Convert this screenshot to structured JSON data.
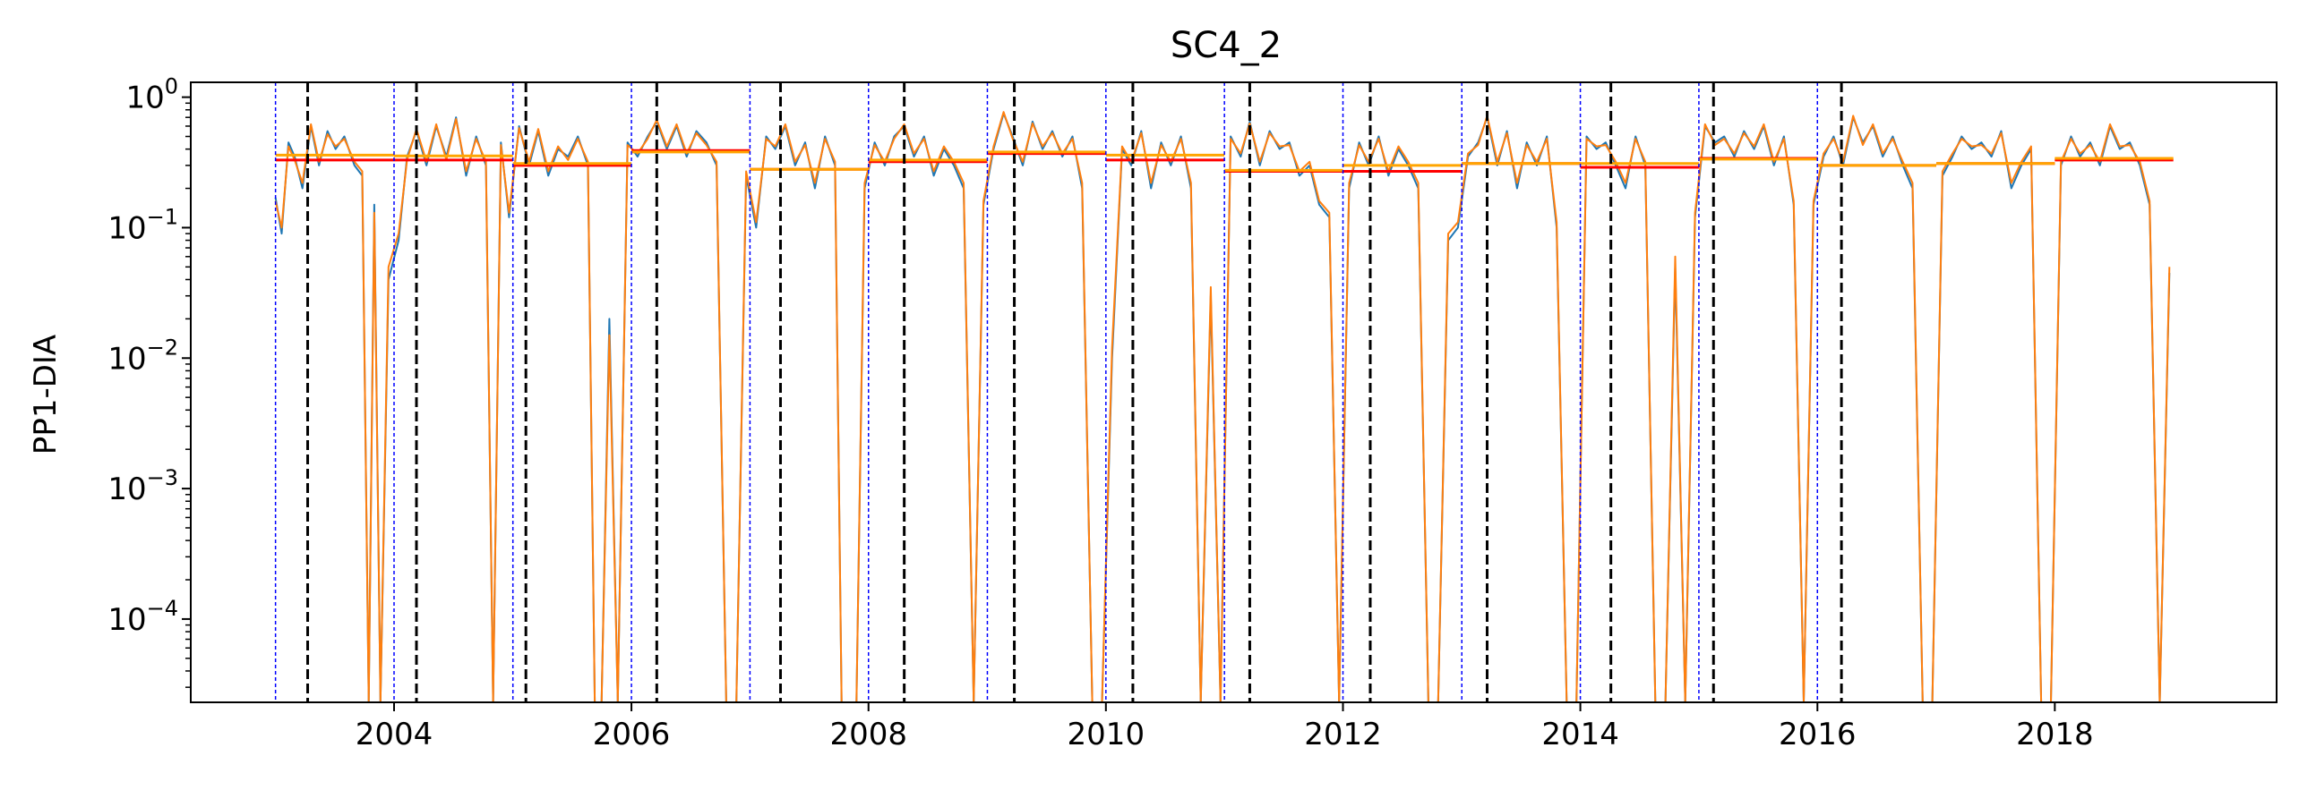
{
  "chart_data": {
    "type": "line",
    "title": "SC4_2",
    "xlabel": "",
    "ylabel": "PP1-DIA",
    "xlim": [
      "2002-04-15",
      "2019-11-15"
    ],
    "ylog": true,
    "ylim": [
      2.3e-05,
      1.3
    ],
    "x_ticks": [
      {
        "date": "2004-01-01",
        "label": "2004"
      },
      {
        "date": "2006-01-01",
        "label": "2006"
      },
      {
        "date": "2008-01-01",
        "label": "2008"
      },
      {
        "date": "2010-01-01",
        "label": "2010"
      },
      {
        "date": "2012-01-01",
        "label": "2012"
      },
      {
        "date": "2014-01-01",
        "label": "2014"
      },
      {
        "date": "2016-01-01",
        "label": "2016"
      },
      {
        "date": "2018-01-01",
        "label": "2018"
      }
    ],
    "y_ticks": [
      {
        "value": 1,
        "base": "10",
        "exp": "0"
      },
      {
        "value": 0.1,
        "base": "10",
        "exp": "−1"
      },
      {
        "value": 0.01,
        "base": "10",
        "exp": "−2"
      },
      {
        "value": 0.001,
        "base": "10",
        "exp": "−3"
      },
      {
        "value": 0.0001,
        "base": "10",
        "exp": "−4"
      }
    ],
    "grid": false,
    "colors": {
      "series_blue": "#1f77b4",
      "series_orange": "#ff7f0e",
      "year_mean_red": "#ff0000",
      "year_mean_orange": "#ffa500",
      "year_start_line": "#0000ff",
      "event_line": "#000000"
    },
    "year_start_lines": [
      "2003-01-01",
      "2004-01-01",
      "2005-01-01",
      "2006-01-01",
      "2007-01-01",
      "2008-01-01",
      "2009-01-01",
      "2010-01-01",
      "2011-01-01",
      "2012-01-01",
      "2013-01-01",
      "2014-01-01",
      "2015-01-01",
      "2016-01-01"
    ],
    "event_lines": [
      "2003-04-10",
      "2004-03-10",
      "2005-02-10",
      "2006-03-20",
      "2007-04-05",
      "2008-04-20",
      "2009-03-25",
      "2010-03-25",
      "2011-03-20",
      "2012-03-25",
      "2013-03-20",
      "2014-04-05",
      "2015-02-15",
      "2016-03-15"
    ],
    "yearly_means": [
      {
        "year": 2003,
        "red": 0.33,
        "orange": 0.36
      },
      {
        "year": 2004,
        "red": 0.33,
        "orange": 0.355
      },
      {
        "year": 2005,
        "red": 0.3,
        "orange": 0.31
      },
      {
        "year": 2006,
        "red": 0.39,
        "orange": 0.38
      },
      {
        "year": 2007,
        "red": 0.28,
        "orange": 0.28
      },
      {
        "year": 2008,
        "red": 0.32,
        "orange": 0.33
      },
      {
        "year": 2009,
        "red": 0.37,
        "orange": 0.38
      },
      {
        "year": 2010,
        "red": 0.33,
        "orange": 0.36
      },
      {
        "year": 2011,
        "red": 0.27,
        "orange": 0.275
      },
      {
        "year": 2012,
        "red": 0.27,
        "orange": 0.3
      },
      {
        "year": 2013,
        "red": 0.31,
        "orange": 0.31
      },
      {
        "year": 2014,
        "red": 0.29,
        "orange": 0.31
      },
      {
        "year": 2015,
        "red": 0.34,
        "orange": 0.335
      },
      {
        "year": 2016,
        "red": 0.3,
        "orange": 0.3
      },
      {
        "year": 2017,
        "red": 0.31,
        "orange": 0.31
      },
      {
        "year": 2018,
        "red": 0.33,
        "orange": 0.34
      }
    ],
    "series": [
      {
        "color_key": "series_blue",
        "x": [
          "2003-01-01",
          "2003-01-20",
          "2003-02-10",
          "2003-03-01",
          "2003-03-25",
          "2003-04-20",
          "2003-05-15",
          "2003-06-10",
          "2003-07-05",
          "2003-08-01",
          "2003-09-01",
          "2003-09-25",
          "2003-10-15",
          "2003-11-01",
          "2003-11-20",
          "2003-12-15",
          "2004-01-15",
          "2004-02-10",
          "2004-03-10",
          "2004-04-10",
          "2004-05-10",
          "2004-06-10",
          "2004-07-10",
          "2004-08-10",
          "2004-09-10",
          "2004-10-10",
          "2004-11-01",
          "2004-11-25",
          "2004-12-20",
          "2005-01-20",
          "2005-02-20",
          "2005-03-20",
          "2005-04-20",
          "2005-05-20",
          "2005-06-20",
          "2005-07-20",
          "2005-08-20",
          "2005-09-10",
          "2005-10-01",
          "2005-10-25",
          "2005-11-20",
          "2005-12-20",
          "2006-01-20",
          "2006-02-20",
          "2006-03-20",
          "2006-04-20",
          "2006-05-20",
          "2006-06-20",
          "2006-07-20",
          "2006-08-20",
          "2006-09-20",
          "2006-10-20",
          "2006-11-20",
          "2006-12-20",
          "2007-01-20",
          "2007-02-20",
          "2007-03-20",
          "2007-04-20",
          "2007-05-20",
          "2007-06-20",
          "2007-07-20",
          "2007-08-20",
          "2007-09-20",
          "2007-10-10",
          "2007-11-01",
          "2007-11-25",
          "2007-12-20",
          "2008-01-20",
          "2008-02-20",
          "2008-03-20",
          "2008-04-20",
          "2008-05-20",
          "2008-06-20",
          "2008-07-20",
          "2008-08-20",
          "2008-09-20",
          "2008-10-20",
          "2008-11-20",
          "2008-12-20",
          "2009-01-20",
          "2009-02-20",
          "2009-03-20",
          "2009-04-20",
          "2009-05-20",
          "2009-06-20",
          "2009-07-20",
          "2009-08-20",
          "2009-09-20",
          "2009-10-20",
          "2009-11-20",
          "2009-12-20",
          "2010-01-20",
          "2010-02-20",
          "2010-03-20",
          "2010-04-20",
          "2010-05-20",
          "2010-06-20",
          "2010-07-20",
          "2010-08-20",
          "2010-09-20",
          "2010-10-20",
          "2010-11-20",
          "2010-12-20",
          "2011-01-20",
          "2011-02-20",
          "2011-03-20",
          "2011-04-20",
          "2011-05-20",
          "2011-06-20",
          "2011-07-20",
          "2011-08-20",
          "2011-09-20",
          "2011-10-20",
          "2011-11-20",
          "2011-12-20",
          "2012-01-20",
          "2012-02-20",
          "2012-03-20",
          "2012-04-20",
          "2012-05-20",
          "2012-06-20",
          "2012-07-20",
          "2012-08-20",
          "2012-09-20",
          "2012-10-20",
          "2012-11-20",
          "2012-12-20",
          "2013-01-20",
          "2013-02-20",
          "2013-03-20",
          "2013-04-20",
          "2013-05-20",
          "2013-06-20",
          "2013-07-20",
          "2013-08-20",
          "2013-09-20",
          "2013-10-20",
          "2013-11-20",
          "2013-12-20",
          "2014-01-20",
          "2014-02-20",
          "2014-03-20",
          "2014-04-20",
          "2014-05-20",
          "2014-06-20",
          "2014-07-20",
          "2014-08-20",
          "2014-09-20",
          "2014-10-20",
          "2014-11-20",
          "2014-12-20",
          "2015-01-20",
          "2015-02-20",
          "2015-03-20",
          "2015-04-20",
          "2015-05-20",
          "2015-06-20",
          "2015-07-20",
          "2015-08-20",
          "2015-09-20",
          "2015-10-20",
          "2015-11-20",
          "2015-12-20",
          "2016-01-20",
          "2016-02-20",
          "2016-03-20",
          "2016-04-20",
          "2016-05-20",
          "2016-06-20",
          "2016-07-20",
          "2016-08-20",
          "2016-09-20",
          "2016-10-20",
          "2016-11-20",
          "2016-12-20",
          "2017-01-20",
          "2017-02-20",
          "2017-03-20",
          "2017-04-20",
          "2017-05-20",
          "2017-06-20",
          "2017-07-20",
          "2017-08-20",
          "2017-09-20",
          "2017-10-20",
          "2017-11-20",
          "2017-12-20",
          "2018-01-20",
          "2018-02-20",
          "2018-03-20",
          "2018-04-20",
          "2018-05-20",
          "2018-06-20",
          "2018-07-20",
          "2018-08-20",
          "2018-09-20",
          "2018-10-20",
          "2018-11-20",
          "2018-12-20"
        ],
        "y": [
          0.17,
          0.09,
          0.45,
          0.35,
          0.2,
          0.6,
          0.3,
          0.55,
          0.4,
          0.5,
          0.3,
          0.25,
          2e-05,
          0.15,
          2e-05,
          0.04,
          0.08,
          0.35,
          0.55,
          0.3,
          0.6,
          0.35,
          0.7,
          0.25,
          0.5,
          0.3,
          2e-05,
          0.45,
          0.12,
          0.6,
          0.3,
          0.55,
          0.25,
          0.4,
          0.35,
          0.5,
          0.3,
          2e-05,
          2e-05,
          0.02,
          2e-05,
          0.45,
          0.35,
          0.5,
          0.65,
          0.4,
          0.6,
          0.35,
          0.55,
          0.45,
          0.3,
          2e-05,
          2e-05,
          0.25,
          0.1,
          0.5,
          0.4,
          0.6,
          0.3,
          0.45,
          0.2,
          0.5,
          0.3,
          2e-05,
          2e-05,
          2e-05,
          0.2,
          0.45,
          0.3,
          0.5,
          0.6,
          0.35,
          0.5,
          0.25,
          0.4,
          0.3,
          0.2,
          2e-05,
          0.15,
          0.4,
          0.75,
          0.5,
          0.3,
          0.65,
          0.4,
          0.55,
          0.35,
          0.5,
          0.2,
          2e-05,
          2e-05,
          0.01,
          0.4,
          0.3,
          0.55,
          0.2,
          0.45,
          0.3,
          0.5,
          0.2,
          2e-05,
          0.03,
          2e-05,
          0.5,
          0.35,
          0.65,
          0.3,
          0.55,
          0.4,
          0.45,
          0.25,
          0.3,
          0.15,
          0.12,
          2e-05,
          0.2,
          0.45,
          0.3,
          0.5,
          0.25,
          0.4,
          0.3,
          0.2,
          2e-05,
          2e-05,
          0.08,
          0.1,
          0.35,
          0.45,
          0.7,
          0.3,
          0.55,
          0.2,
          0.45,
          0.3,
          0.5,
          0.1,
          2e-05,
          2e-05,
          0.5,
          0.4,
          0.45,
          0.3,
          0.2,
          0.5,
          0.3,
          2e-05,
          2e-05,
          0.05,
          2e-05,
          0.12,
          0.6,
          0.45,
          0.5,
          0.35,
          0.55,
          0.4,
          0.6,
          0.3,
          0.5,
          0.15,
          2e-05,
          0.15,
          0.35,
          0.5,
          0.3,
          0.7,
          0.45,
          0.6,
          0.35,
          0.5,
          0.3,
          0.2,
          2e-05,
          2e-05,
          0.25,
          0.35,
          0.5,
          0.4,
          0.45,
          0.35,
          0.55,
          0.2,
          0.3,
          0.4,
          2e-05,
          2e-05,
          0.3,
          0.5,
          0.35,
          0.45,
          0.3,
          0.6,
          0.4,
          0.45,
          0.3,
          0.15,
          2e-05,
          0.045
        ]
      },
      {
        "color_key": "series_orange",
        "x": [
          "2003-01-01",
          "2003-01-20",
          "2003-02-10",
          "2003-03-01",
          "2003-03-25",
          "2003-04-20",
          "2003-05-15",
          "2003-06-10",
          "2003-07-05",
          "2003-08-01",
          "2003-09-01",
          "2003-09-25",
          "2003-10-15",
          "2003-11-01",
          "2003-11-20",
          "2003-12-15",
          "2004-01-15",
          "2004-02-10",
          "2004-03-10",
          "2004-04-10",
          "2004-05-10",
          "2004-06-10",
          "2004-07-10",
          "2004-08-10",
          "2004-09-10",
          "2004-10-10",
          "2004-11-01",
          "2004-11-25",
          "2004-12-20",
          "2005-01-20",
          "2005-02-20",
          "2005-03-20",
          "2005-04-20",
          "2005-05-20",
          "2005-06-20",
          "2005-07-20",
          "2005-08-20",
          "2005-09-10",
          "2005-10-01",
          "2005-10-25",
          "2005-11-20",
          "2005-12-20",
          "2006-01-20",
          "2006-02-20",
          "2006-03-20",
          "2006-04-20",
          "2006-05-20",
          "2006-06-20",
          "2006-07-20",
          "2006-08-20",
          "2006-09-20",
          "2006-10-20",
          "2006-11-20",
          "2006-12-20",
          "2007-01-20",
          "2007-02-20",
          "2007-03-20",
          "2007-04-20",
          "2007-05-20",
          "2007-06-20",
          "2007-07-20",
          "2007-08-20",
          "2007-09-20",
          "2007-10-10",
          "2007-11-01",
          "2007-11-25",
          "2007-12-20",
          "2008-01-20",
          "2008-02-20",
          "2008-03-20",
          "2008-04-20",
          "2008-05-20",
          "2008-06-20",
          "2008-07-20",
          "2008-08-20",
          "2008-09-20",
          "2008-10-20",
          "2008-11-20",
          "2008-12-20",
          "2009-01-20",
          "2009-02-20",
          "2009-03-20",
          "2009-04-20",
          "2009-05-20",
          "2009-06-20",
          "2009-07-20",
          "2009-08-20",
          "2009-09-20",
          "2009-10-20",
          "2009-11-20",
          "2009-12-20",
          "2010-01-20",
          "2010-02-20",
          "2010-03-20",
          "2010-04-20",
          "2010-05-20",
          "2010-06-20",
          "2010-07-20",
          "2010-08-20",
          "2010-09-20",
          "2010-10-20",
          "2010-11-20",
          "2010-12-20",
          "2011-01-20",
          "2011-02-20",
          "2011-03-20",
          "2011-04-20",
          "2011-05-20",
          "2011-06-20",
          "2011-07-20",
          "2011-08-20",
          "2011-09-20",
          "2011-10-20",
          "2011-11-20",
          "2011-12-20",
          "2012-01-20",
          "2012-02-20",
          "2012-03-20",
          "2012-04-20",
          "2012-05-20",
          "2012-06-20",
          "2012-07-20",
          "2012-08-20",
          "2012-09-20",
          "2012-10-20",
          "2012-11-20",
          "2012-12-20",
          "2013-01-20",
          "2013-02-20",
          "2013-03-20",
          "2013-04-20",
          "2013-05-20",
          "2013-06-20",
          "2013-07-20",
          "2013-08-20",
          "2013-09-20",
          "2013-10-20",
          "2013-11-20",
          "2013-12-20",
          "2014-01-20",
          "2014-02-20",
          "2014-03-20",
          "2014-04-20",
          "2014-05-20",
          "2014-06-20",
          "2014-07-20",
          "2014-08-20",
          "2014-09-20",
          "2014-10-20",
          "2014-11-20",
          "2014-12-20",
          "2015-01-20",
          "2015-02-20",
          "2015-03-20",
          "2015-04-20",
          "2015-05-20",
          "2015-06-20",
          "2015-07-20",
          "2015-08-20",
          "2015-09-20",
          "2015-10-20",
          "2015-11-20",
          "2015-12-20",
          "2016-01-20",
          "2016-02-20",
          "2016-03-20",
          "2016-04-20",
          "2016-05-20",
          "2016-06-20",
          "2016-07-20",
          "2016-08-20",
          "2016-09-20",
          "2016-10-20",
          "2016-11-20",
          "2016-12-20",
          "2017-01-20",
          "2017-02-20",
          "2017-03-20",
          "2017-04-20",
          "2017-05-20",
          "2017-06-20",
          "2017-07-20",
          "2017-08-20",
          "2017-09-20",
          "2017-10-20",
          "2017-11-20",
          "2017-12-20",
          "2018-01-20",
          "2018-02-20",
          "2018-03-20",
          "2018-04-20",
          "2018-05-20",
          "2018-06-20",
          "2018-07-20",
          "2018-08-20",
          "2018-09-20",
          "2018-10-20",
          "2018-11-20",
          "2018-12-20"
        ],
        "y": [
          0.16,
          0.1,
          0.42,
          0.33,
          0.22,
          0.62,
          0.32,
          0.52,
          0.42,
          0.48,
          0.32,
          0.27,
          2e-05,
          0.13,
          2e-05,
          0.05,
          0.09,
          0.33,
          0.57,
          0.32,
          0.62,
          0.33,
          0.68,
          0.27,
          0.48,
          0.32,
          2e-05,
          0.43,
          0.13,
          0.58,
          0.32,
          0.57,
          0.27,
          0.42,
          0.33,
          0.48,
          0.32,
          2e-05,
          2e-05,
          0.015,
          2e-05,
          0.43,
          0.37,
          0.48,
          0.67,
          0.42,
          0.62,
          0.37,
          0.53,
          0.43,
          0.32,
          2e-05,
          2e-05,
          0.27,
          0.11,
          0.48,
          0.42,
          0.62,
          0.32,
          0.43,
          0.22,
          0.48,
          0.32,
          2e-05,
          2e-05,
          2e-05,
          0.22,
          0.43,
          0.32,
          0.48,
          0.62,
          0.37,
          0.48,
          0.27,
          0.42,
          0.32,
          0.22,
          2e-05,
          0.16,
          0.42,
          0.77,
          0.48,
          0.32,
          0.63,
          0.42,
          0.53,
          0.37,
          0.48,
          0.22,
          2e-05,
          2e-05,
          0.012,
          0.42,
          0.32,
          0.53,
          0.22,
          0.43,
          0.32,
          0.48,
          0.22,
          2e-05,
          0.035,
          2e-05,
          0.48,
          0.37,
          0.63,
          0.32,
          0.53,
          0.42,
          0.43,
          0.27,
          0.32,
          0.16,
          0.13,
          2e-05,
          0.22,
          0.43,
          0.32,
          0.48,
          0.27,
          0.42,
          0.32,
          0.22,
          2e-05,
          2e-05,
          0.09,
          0.11,
          0.37,
          0.43,
          0.72,
          0.32,
          0.53,
          0.22,
          0.43,
          0.32,
          0.48,
          0.11,
          2e-05,
          2e-05,
          0.48,
          0.42,
          0.43,
          0.32,
          0.22,
          0.48,
          0.32,
          2e-05,
          2e-05,
          0.06,
          2e-05,
          0.13,
          0.62,
          0.43,
          0.48,
          0.37,
          0.53,
          0.42,
          0.62,
          0.32,
          0.48,
          0.16,
          2e-05,
          0.16,
          0.37,
          0.48,
          0.32,
          0.72,
          0.43,
          0.62,
          0.37,
          0.48,
          0.32,
          0.22,
          2e-05,
          2e-05,
          0.27,
          0.37,
          0.48,
          0.42,
          0.43,
          0.37,
          0.53,
          0.22,
          0.32,
          0.42,
          2e-05,
          2e-05,
          0.32,
          0.48,
          0.37,
          0.43,
          0.32,
          0.62,
          0.42,
          0.43,
          0.32,
          0.16,
          2e-05,
          0.05
        ]
      }
    ]
  }
}
